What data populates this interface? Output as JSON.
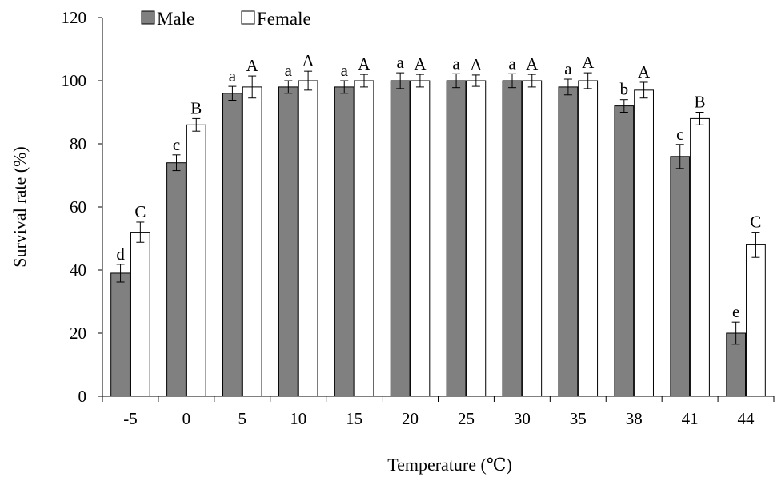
{
  "chart_data": {
    "type": "bar",
    "title": "",
    "xlabel": "Temperature (℃)",
    "ylabel": "Survival rate (%)",
    "ylim": [
      0,
      120
    ],
    "yticks": [
      0,
      20,
      40,
      60,
      80,
      100,
      120
    ],
    "grid": false,
    "legend_position": "top-left",
    "categories": [
      "-5",
      "0",
      "5",
      "10",
      "15",
      "20",
      "25",
      "30",
      "35",
      "38",
      "41",
      "44"
    ],
    "series": [
      {
        "name": "Male",
        "color": "#808080",
        "values": [
          39,
          74,
          96,
          98,
          98,
          100,
          100,
          100,
          98,
          92,
          76,
          20
        ],
        "errors": [
          2.8,
          2.5,
          2.2,
          2.0,
          2.0,
          2.5,
          2.2,
          2.2,
          2.5,
          2.0,
          3.8,
          3.5
        ],
        "labels": [
          "d",
          "c",
          "a",
          "a",
          "a",
          "a",
          "a",
          "a",
          "a",
          "b",
          "c",
          "e"
        ]
      },
      {
        "name": "Female",
        "color": "#ffffff",
        "values": [
          52,
          86,
          98,
          100,
          100,
          100,
          100,
          100,
          100,
          97,
          88,
          48
        ],
        "errors": [
          3.2,
          2.0,
          3.5,
          3.0,
          2.0,
          2.0,
          1.8,
          2.0,
          2.5,
          2.5,
          2.0,
          4.0
        ],
        "labels": [
          "C",
          "B",
          "A",
          "A",
          "A",
          "A",
          "A",
          "A",
          "A",
          "A",
          "B",
          "C"
        ]
      }
    ]
  }
}
